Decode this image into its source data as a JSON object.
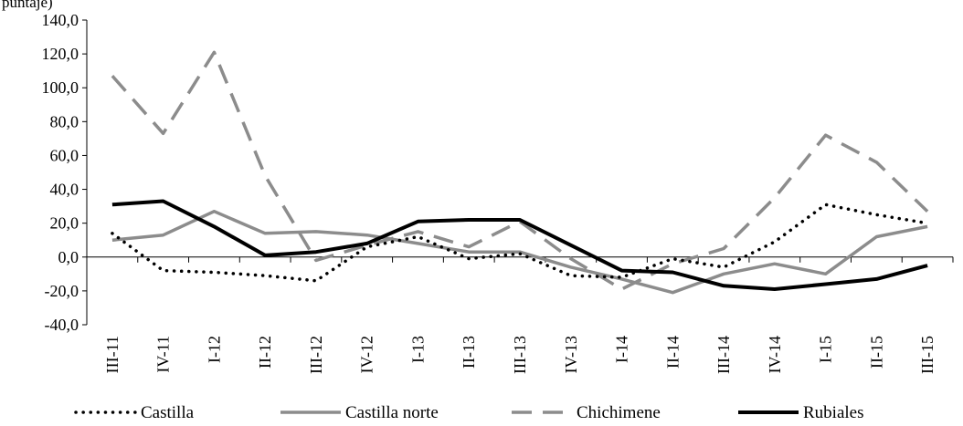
{
  "corner_text": "puntaje)",
  "chart_data": {
    "type": "line",
    "title": "",
    "xlabel": "",
    "ylabel": "",
    "ylim": [
      -40,
      140
    ],
    "y_ticks": [
      140,
      120,
      100,
      80,
      60,
      40,
      20,
      0,
      -20,
      -40
    ],
    "y_tick_labels": [
      "140,0",
      "120,0",
      "100,0",
      "80,0",
      "60,0",
      "40,0",
      "20,0",
      "0,0",
      "-20,0",
      "-40,0"
    ],
    "categories": [
      "III-11",
      "IV-11",
      "I-12",
      "II-12",
      "III-12",
      "IV-12",
      "I-13",
      "II-13",
      "III-13",
      "IV-13",
      "I-14",
      "II-14",
      "III-14",
      "IV-14",
      "I-15",
      "II-15",
      "III-15"
    ],
    "grid": false,
    "legend_position": "bottom",
    "series": [
      {
        "name": "Castilla",
        "style": "dotted",
        "color": "#000000",
        "values": [
          14,
          -8,
          -9,
          -11,
          -14,
          6,
          12,
          -1,
          2,
          -11,
          -12,
          -1,
          -6,
          9,
          31,
          25,
          20
        ]
      },
      {
        "name": "Castilla norte",
        "style": "solid",
        "color": "#8c8c8c",
        "values": [
          10,
          13,
          27,
          14,
          15,
          13,
          8,
          3,
          3,
          -6,
          -13,
          -21,
          -10,
          -4,
          -10,
          12,
          18
        ]
      },
      {
        "name": "Chichimene",
        "style": "dashed",
        "color": "#8c8c8c",
        "values": [
          107,
          73,
          121,
          48,
          -2,
          7,
          15,
          6,
          21,
          -1,
          -19,
          -4,
          5,
          35,
          72,
          56,
          27
        ]
      },
      {
        "name": "Rubiales",
        "style": "solid",
        "color": "#000000",
        "values": [
          31,
          33,
          18,
          1,
          3,
          8,
          21,
          22,
          22,
          7,
          -8,
          -9,
          -17,
          -19,
          -16,
          -13,
          -5
        ]
      }
    ]
  }
}
